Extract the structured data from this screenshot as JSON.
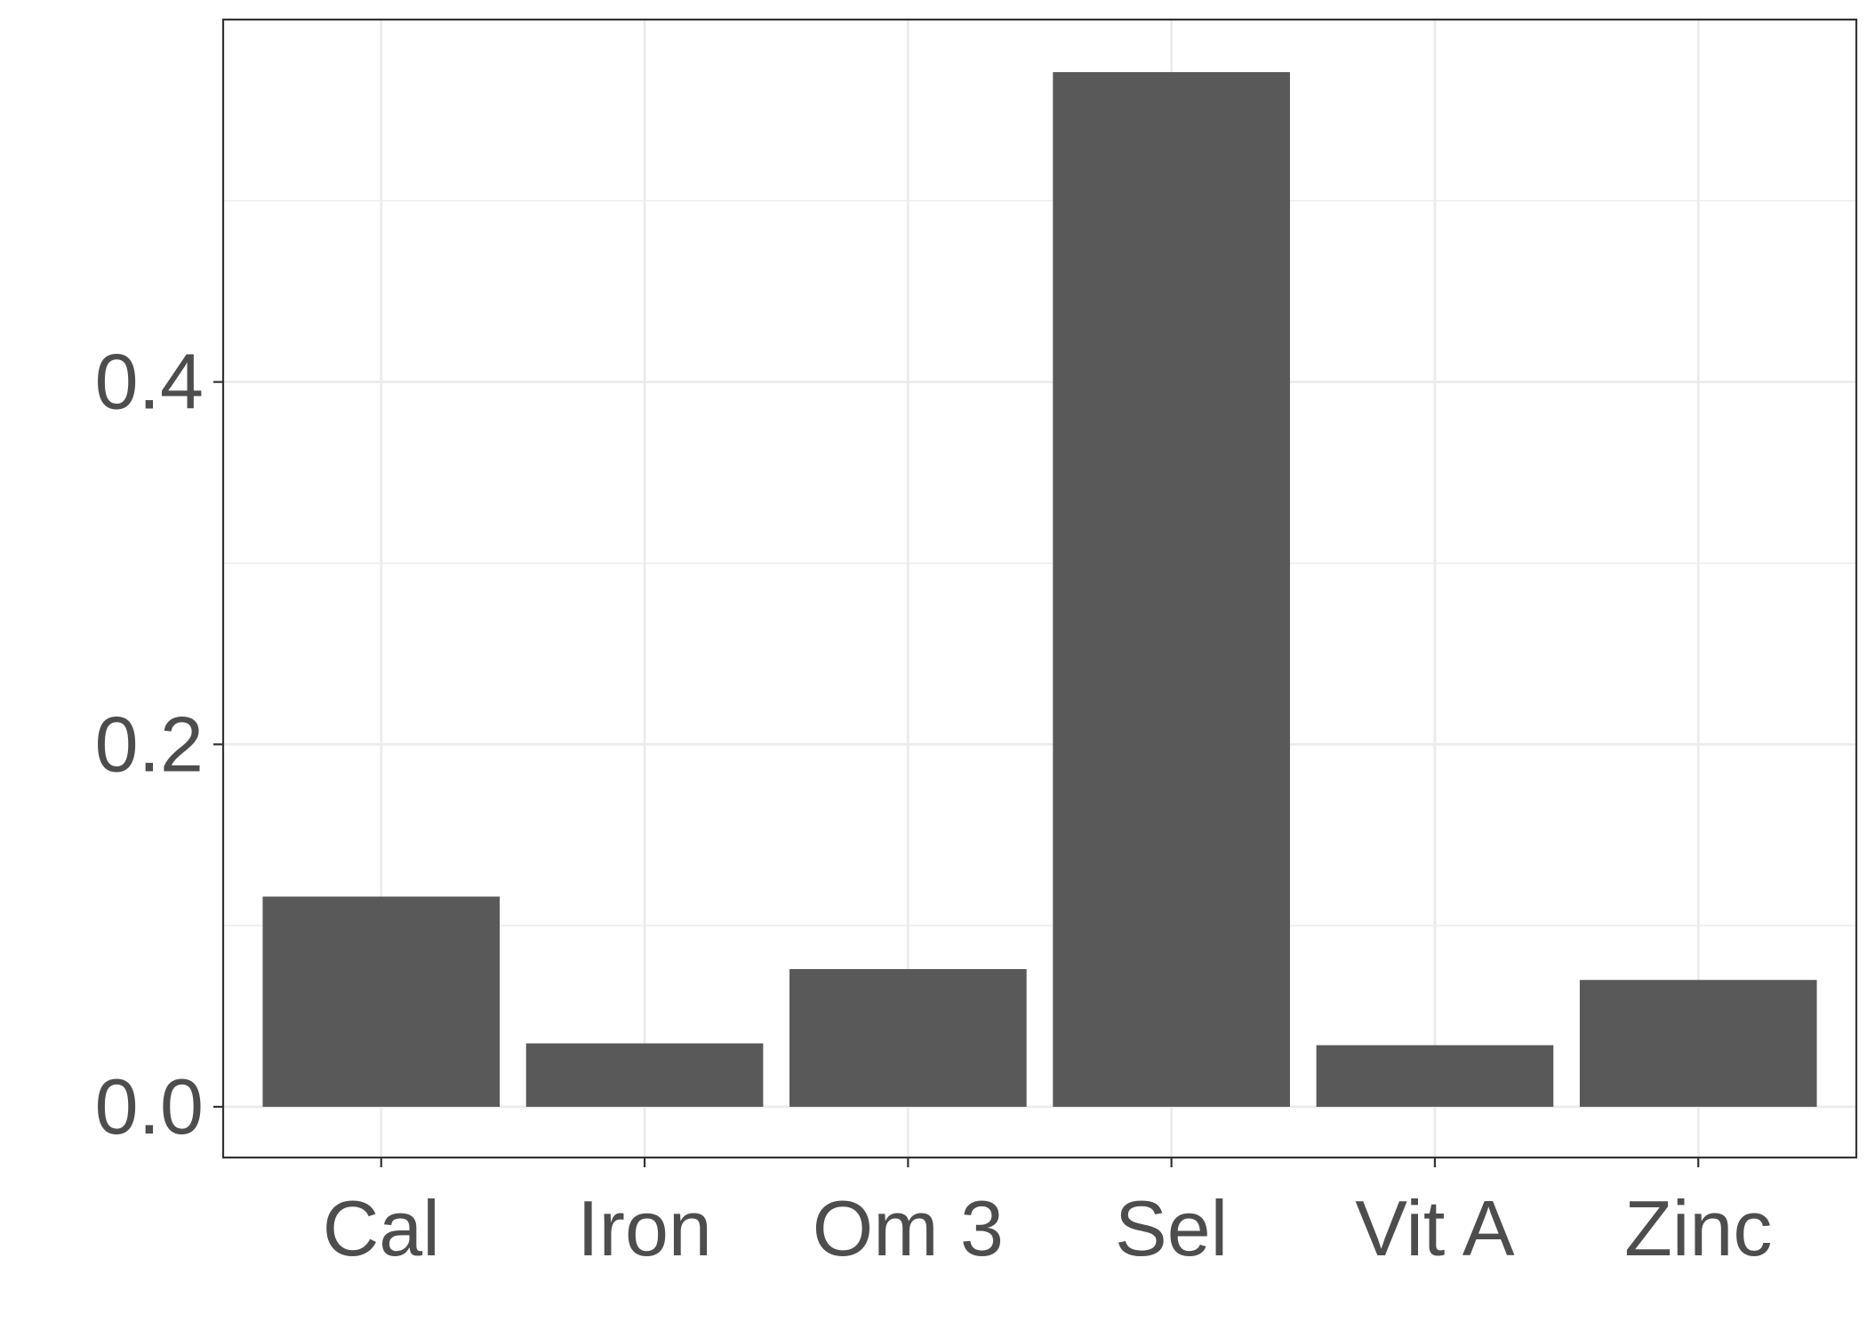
{
  "chart_data": {
    "type": "bar",
    "categories": [
      "Cal",
      "Iron",
      "Om 3",
      "Sel",
      "Vit A",
      "Zinc"
    ],
    "values": [
      0.116,
      0.035,
      0.076,
      0.571,
      0.034,
      0.07
    ],
    "y_ticks": [
      0.0,
      0.2,
      0.4
    ],
    "y_tick_labels": [
      "0.0",
      "0.2",
      "0.4"
    ],
    "ylim": [
      -0.028,
      0.6
    ],
    "grid": true,
    "bar_color": "#595959",
    "grid_color": "#ebebeb",
    "axis_color": "#333333",
    "tick_label_color": "#4d4d4d",
    "background": "#ffffff"
  }
}
